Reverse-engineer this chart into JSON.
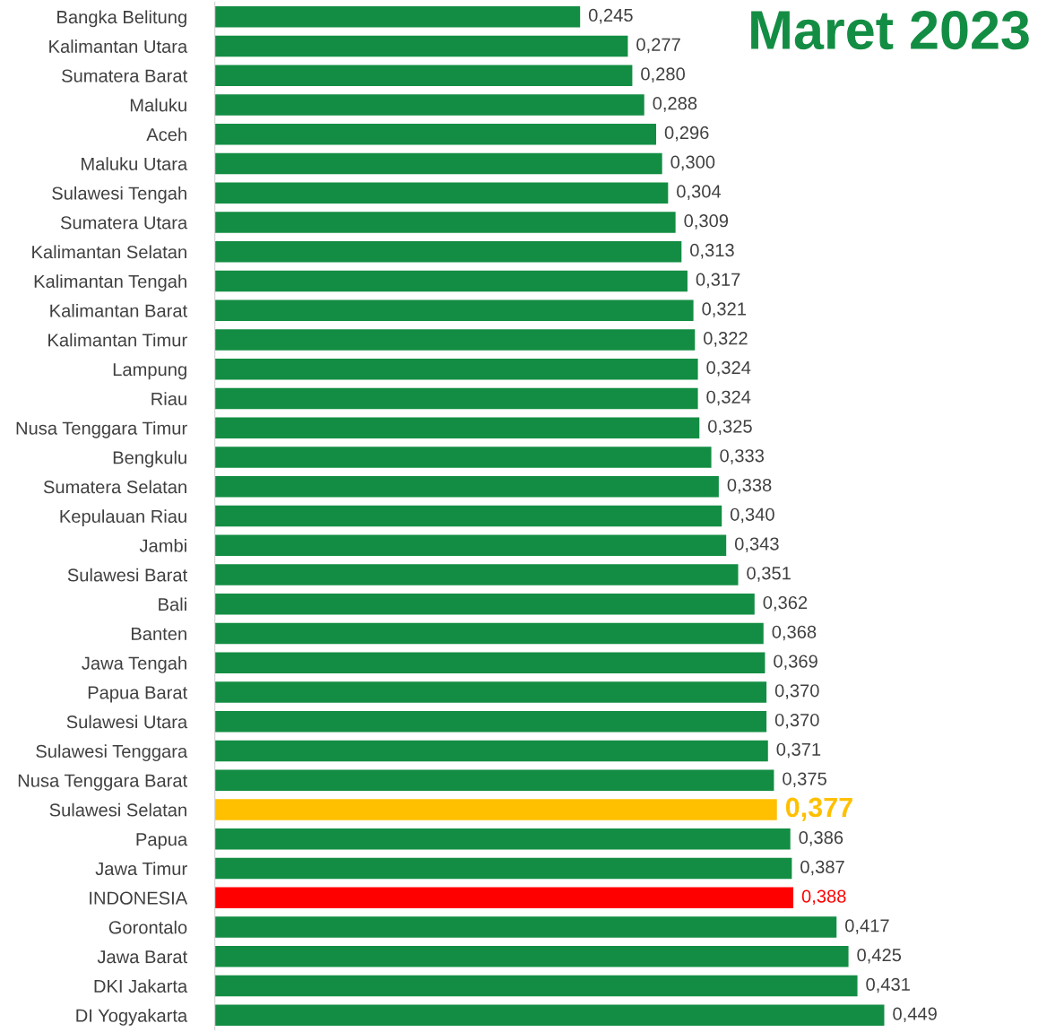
{
  "chart_data": {
    "type": "bar",
    "orientation": "horizontal",
    "title": "Maret 2023",
    "categories": [
      "Bangka Belitung",
      "Kalimantan Utara",
      "Sumatera Barat",
      "Maluku",
      "Aceh",
      "Maluku Utara",
      "Sulawesi Tengah",
      "Sumatera Utara",
      "Kalimantan Selatan",
      "Kalimantan Tengah",
      "Kalimantan Barat",
      "Kalimantan Timur",
      "Lampung",
      "Riau",
      "Nusa Tenggara Timur",
      "Bengkulu",
      "Sumatera Selatan",
      "Kepulauan Riau",
      "Jambi",
      "Sulawesi Barat",
      "Bali",
      "Banten",
      "Jawa Tengah",
      "Papua Barat",
      "Sulawesi Utara",
      "Sulawesi Tenggara",
      "Nusa Tenggara Barat",
      "Sulawesi Selatan",
      "Papua",
      "Jawa Timur",
      "INDONESIA",
      "Gorontalo",
      "Jawa Barat",
      "DKI Jakarta",
      "DI Yogyakarta"
    ],
    "values": [
      0.245,
      0.277,
      0.28,
      0.288,
      0.296,
      0.3,
      0.304,
      0.309,
      0.313,
      0.317,
      0.321,
      0.322,
      0.324,
      0.324,
      0.325,
      0.333,
      0.338,
      0.34,
      0.343,
      0.351,
      0.362,
      0.368,
      0.369,
      0.37,
      0.37,
      0.371,
      0.375,
      0.377,
      0.386,
      0.387,
      0.388,
      0.417,
      0.425,
      0.431,
      0.449
    ],
    "value_labels": [
      "0,245",
      "0,277",
      "0,280",
      "0,288",
      "0,296",
      "0,300",
      "0,304",
      "0,309",
      "0,313",
      "0,317",
      "0,321",
      "0,322",
      "0,324",
      "0,324",
      "0,325",
      "0,333",
      "0,338",
      "0,340",
      "0,343",
      "0,351",
      "0,362",
      "0,368",
      "0,369",
      "0,370",
      "0,370",
      "0,371",
      "0,375",
      "0,377",
      "0,386",
      "0,387",
      "0,388",
      "0,417",
      "0,425",
      "0,431",
      "0,449"
    ],
    "colors": [
      "#138d43",
      "#138d43",
      "#138d43",
      "#138d43",
      "#138d43",
      "#138d43",
      "#138d43",
      "#138d43",
      "#138d43",
      "#138d43",
      "#138d43",
      "#138d43",
      "#138d43",
      "#138d43",
      "#138d43",
      "#138d43",
      "#138d43",
      "#138d43",
      "#138d43",
      "#138d43",
      "#138d43",
      "#138d43",
      "#138d43",
      "#138d43",
      "#138d43",
      "#138d43",
      "#138d43",
      "#ffc000",
      "#138d43",
      "#138d43",
      "#ff0000",
      "#138d43",
      "#138d43",
      "#138d43",
      "#138d43"
    ],
    "grid": false,
    "legend": false
  }
}
